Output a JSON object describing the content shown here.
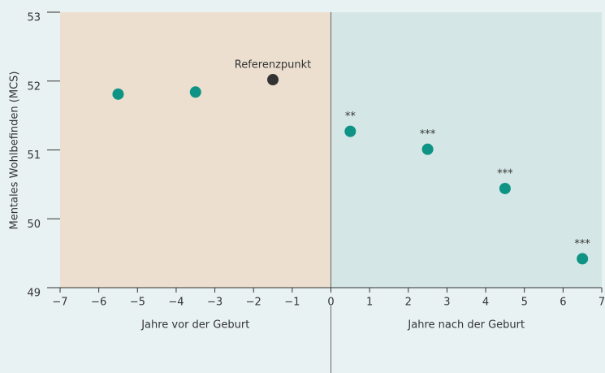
{
  "chart_data": {
    "type": "scatter",
    "ylabel": "Mentales Wohlbefinden (MCS)",
    "x": [
      -5.5,
      -3.5,
      -1.5,
      0.5,
      2.5,
      4.5,
      6.5
    ],
    "values": [
      51.81,
      51.84,
      52.02,
      51.27,
      51.01,
      50.44,
      49.42
    ],
    "colors": [
      "#0e9384",
      "#0e9384",
      "#333333",
      "#0e9384",
      "#0e9384",
      "#0e9384",
      "#0e9384"
    ],
    "point_labels": [
      null,
      null,
      "Referenzpunkt",
      "**",
      "***",
      "***",
      "***"
    ],
    "regions": [
      {
        "label": "Jahre vor der Geburt",
        "xlim": [
          -7,
          0
        ],
        "color": "#ecdfcf"
      },
      {
        "label": "Jahre nach der Geburt",
        "xlim": [
          0,
          7
        ],
        "color": "#d4e7e6"
      }
    ],
    "xlim": [
      -7,
      7
    ],
    "xticks": [
      {
        "value": -7,
        "label": "−7"
      },
      {
        "value": -6,
        "label": "−6"
      },
      {
        "value": -5,
        "label": "−5"
      },
      {
        "value": -4,
        "label": "−4"
      },
      {
        "value": -3,
        "label": "−3"
      },
      {
        "value": -2,
        "label": "−2"
      },
      {
        "value": -1,
        "label": "−1"
      },
      0,
      1,
      2,
      3,
      4,
      5,
      6,
      7
    ],
    "ylim": [
      49,
      53
    ],
    "yticks": [
      49,
      50,
      51,
      52,
      53
    ]
  }
}
